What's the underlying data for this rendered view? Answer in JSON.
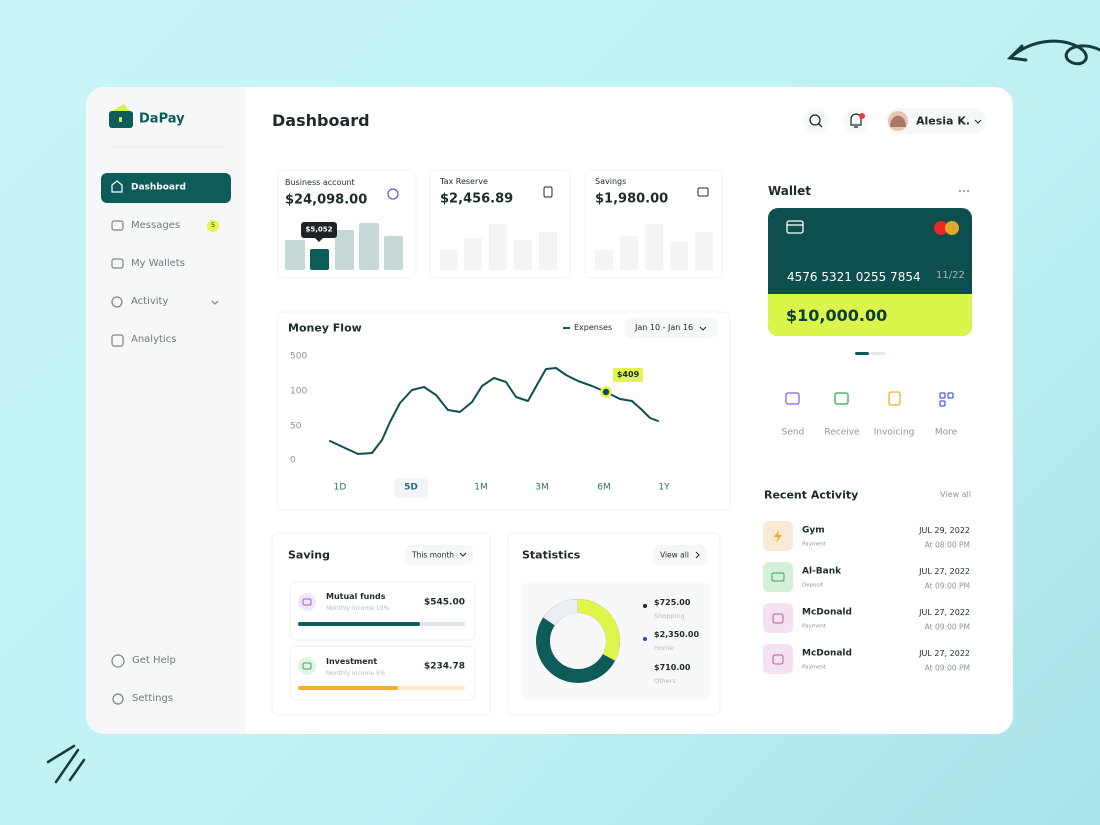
{
  "brand": "DaPay",
  "nav": {
    "items": [
      "Dashboard",
      "Messages",
      "My Wallets",
      "Activity",
      "Analytics"
    ],
    "messages_badge": "5",
    "bottom": [
      "Get Help",
      "Settings"
    ]
  },
  "header": {
    "title": "Dashboard",
    "user": "Alesia K."
  },
  "accounts": [
    {
      "label": "Business account",
      "amount": "$24,098.00",
      "tooltip": "$5,052"
    },
    {
      "label": "Tax Reserve",
      "amount": "$2,456.89"
    },
    {
      "label": "Savings",
      "amount": "$1,980.00"
    }
  ],
  "money_flow": {
    "title": "Money Flow",
    "legend": "Expenses",
    "range": "Jan 10 - Jan 16",
    "yticks": [
      "500",
      "100",
      "50",
      "0"
    ],
    "periods": [
      "1D",
      "5D",
      "1M",
      "3M",
      "6M",
      "1Y"
    ],
    "tooltip": "$409"
  },
  "saving": {
    "title": "Saving",
    "filter": "This month",
    "items": [
      {
        "name": "Mutual funds",
        "sub": "Monthly income 10%",
        "amount": "$545.00"
      },
      {
        "name": "Investment",
        "sub": "Monthly income 5%",
        "amount": "$234.78"
      }
    ]
  },
  "statistics": {
    "title": "Statistics",
    "link": "View all",
    "items": [
      {
        "amount": "$725.00",
        "label": "Shopping"
      },
      {
        "amount": "$2,350.00",
        "label": "Home"
      },
      {
        "amount": "$710.00",
        "label": "Others"
      }
    ]
  },
  "wallet": {
    "title": "Wallet",
    "card_number": "4576 5321 0255 7854",
    "expiry": "11/22",
    "balance": "$10,000.00",
    "actions": [
      "Send",
      "Receive",
      "Invoicing",
      "More"
    ]
  },
  "recent_activity": {
    "title": "Recent Activity",
    "link": "View all",
    "items": [
      {
        "name": "Gym",
        "type": "Payment",
        "date": "JUL 29, 2022",
        "time": "At 08:00 PM"
      },
      {
        "name": "Al-Bank",
        "type": "Deposit",
        "date": "JUL 27, 2022",
        "time": "At 09:00 PM"
      },
      {
        "name": "McDonald",
        "type": "Payment",
        "date": "JUL 27, 2022",
        "time": "At 09:00 PM"
      },
      {
        "name": "McDonald",
        "type": "Payment",
        "date": "JUL 27, 2022",
        "time": "At 09:00 PM"
      }
    ]
  }
}
